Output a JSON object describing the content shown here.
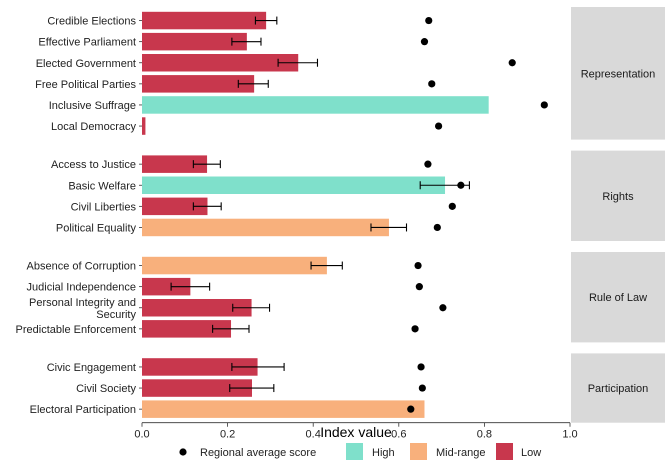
{
  "chart_data": {
    "type": "bar",
    "orientation": "horizontal",
    "xlabel": "Index value",
    "ylabel": "",
    "xlim": [
      0,
      1
    ],
    "xticks": [
      0.0,
      0.2,
      0.4,
      0.6,
      0.8,
      1.0
    ],
    "xtick_labels": [
      "0.0",
      "0.2",
      "0.4",
      "0.6",
      "0.8",
      "1.0"
    ],
    "grid": false,
    "legend_position": "bottom",
    "legend": {
      "point_label": "Regional average score",
      "items": [
        {
          "key": "High",
          "label": "High",
          "color": "#7fe0cb"
        },
        {
          "key": "Mid-range",
          "label": "Mid-range",
          "color": "#f8b07c"
        },
        {
          "key": "Low",
          "label": "Low",
          "color": "#c8374d"
        }
      ]
    },
    "groups": [
      {
        "name": "Representation",
        "items": [
          {
            "label": "Credible Elections",
            "value": 0.29,
            "err": [
              0.265,
              0.315
            ],
            "avg": 0.67,
            "level": "Low"
          },
          {
            "label": "Effective Parliament",
            "value": 0.245,
            "err": [
              0.21,
              0.278
            ],
            "avg": 0.66,
            "level": "Low"
          },
          {
            "label": "Elected Government",
            "value": 0.365,
            "err": [
              0.318,
              0.41
            ],
            "avg": 0.865,
            "level": "Low"
          },
          {
            "label": "Free Political Parties",
            "value": 0.262,
            "err": [
              0.225,
              0.295
            ],
            "avg": 0.677,
            "level": "Low"
          },
          {
            "label": "Inclusive Suffrage",
            "value": 0.81,
            "err": null,
            "avg": 0.94,
            "level": "High"
          },
          {
            "label": "Local Democracy",
            "value": 0.008,
            "err": null,
            "avg": 0.693,
            "level": "Low"
          }
        ]
      },
      {
        "name": "Rights",
        "items": [
          {
            "label": "Access to Justice",
            "value": 0.152,
            "err": [
              0.12,
              0.183
            ],
            "avg": 0.668,
            "level": "Low"
          },
          {
            "label": "Basic Welfare",
            "value": 0.708,
            "err": [
              0.65,
              0.765
            ],
            "avg": 0.745,
            "level": "High"
          },
          {
            "label": "Civil Liberties",
            "value": 0.153,
            "err": [
              0.12,
              0.185
            ],
            "avg": 0.725,
            "level": "Low"
          },
          {
            "label": "Political Equality",
            "value": 0.577,
            "err": [
              0.535,
              0.618
            ],
            "avg": 0.69,
            "level": "Mid-range"
          }
        ]
      },
      {
        "name": "Rule of Law",
        "items": [
          {
            "label": "Absence of Corruption",
            "value": 0.432,
            "err": [
              0.395,
              0.468
            ],
            "avg": 0.645,
            "level": "Mid-range"
          },
          {
            "label": "Judicial Independence",
            "value": 0.113,
            "err": [
              0.068,
              0.158
            ],
            "avg": 0.648,
            "level": "Low"
          },
          {
            "label": "Personal Integrity and Security",
            "value": 0.256,
            "err": [
              0.212,
              0.298
            ],
            "avg": 0.703,
            "level": "Low"
          },
          {
            "label": "Predictable Enforcement",
            "value": 0.208,
            "err": [
              0.165,
              0.25
            ],
            "avg": 0.638,
            "level": "Low"
          }
        ]
      },
      {
        "name": "Participation",
        "items": [
          {
            "label": "Civic Engagement",
            "value": 0.27,
            "err": [
              0.21,
              0.332
            ],
            "avg": 0.652,
            "level": "Low"
          },
          {
            "label": "Civil Society",
            "value": 0.257,
            "err": [
              0.205,
              0.308
            ],
            "avg": 0.655,
            "level": "Low"
          },
          {
            "label": "Electoral Participation",
            "value": 0.66,
            "err": null,
            "avg": 0.628,
            "level": "Mid-range"
          }
        ]
      }
    ]
  }
}
